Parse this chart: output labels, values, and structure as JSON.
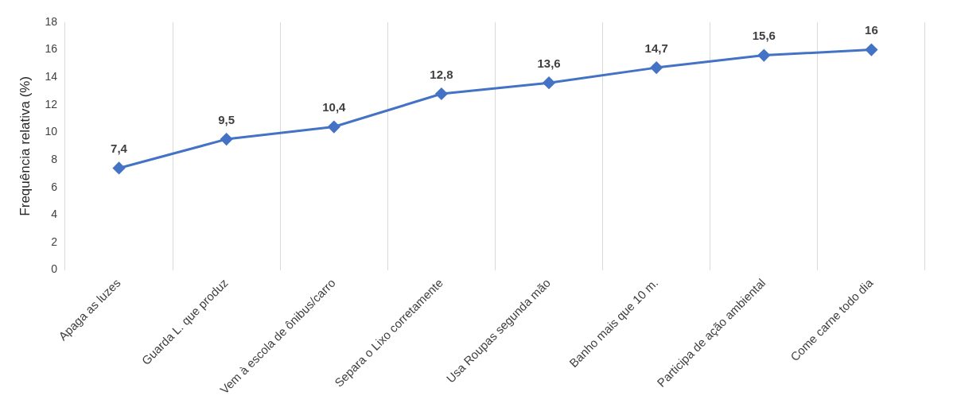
{
  "chart_data": {
    "type": "line",
    "ylabel": "Frequência relativa (%)",
    "categories": [
      "Apaga as luzes",
      "Guarda L. que produz",
      "Vem à escola de ônibus/carro",
      "Separa o Lixo corretamente",
      "Usa Roupas segunda mão",
      "Banho mais que 10 m.",
      "Participa de ação ambiental",
      "Come carne todo dia"
    ],
    "series": [
      {
        "color": "#4472c4",
        "values": [
          7.4,
          9.5,
          10.4,
          12.8,
          13.6,
          14.7,
          15.6,
          16
        ],
        "value_labels": [
          "7,4",
          "9,5",
          "10,4",
          "12,8",
          "13,6",
          "14,7",
          "15,6",
          "16"
        ]
      }
    ],
    "ylim": [
      0,
      18
    ],
    "yticks": [
      0,
      2,
      4,
      6,
      8,
      10,
      12,
      14,
      16,
      18
    ],
    "grid": "x",
    "legend": false,
    "marker": "diamond",
    "line_style": "solid"
  }
}
